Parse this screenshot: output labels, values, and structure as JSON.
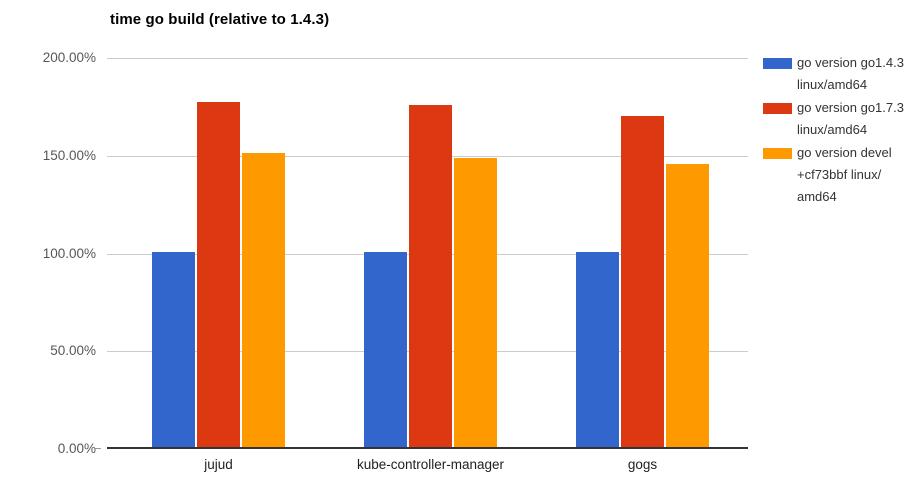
{
  "chart_data": {
    "type": "bar",
    "title": "time go build (relative to 1.4.3)",
    "categories": [
      "jujud",
      "kube-controller-manager",
      "gogs"
    ],
    "series": [
      {
        "name": "go version go1.4.3 linux/amd64",
        "color": "#3366cc",
        "values": [
          100,
          100,
          100
        ]
      },
      {
        "name": "go version go1.7.3 linux/amd64",
        "color": "#dc3912",
        "values": [
          176.5,
          174.8,
          169.2
        ]
      },
      {
        "name": "go version devel +cf73bbf linux/amd64",
        "color": "#ff9900",
        "values": [
          150.3,
          147.9,
          144.7
        ]
      }
    ],
    "ylim": [
      0,
      200
    ],
    "yticks": [
      {
        "value": 0,
        "label": "0.00%"
      },
      {
        "value": 50,
        "label": "50.00%"
      },
      {
        "value": 100,
        "label": "100.00%"
      },
      {
        "value": 150,
        "label": "150.00%"
      },
      {
        "value": 200,
        "label": "200.00%"
      }
    ],
    "grid": true,
    "legend_position": "right",
    "legend": [
      {
        "color": "#3366cc",
        "lines": [
          "go version go1.4.3",
          "linux/amd64"
        ]
      },
      {
        "color": "#dc3912",
        "lines": [
          "go version go1.7.3",
          "linux/amd64"
        ]
      },
      {
        "color": "#ff9900",
        "lines": [
          "go version devel",
          "+cf73bbf linux/",
          "amd64"
        ]
      }
    ],
    "colors": {
      "grid": "#cccccc",
      "baseline": "#333333",
      "ytick_text": "#55575a",
      "xtick_text": "#1f1f1f",
      "legend_text": "#333333",
      "title_text": "#000000",
      "background": "#ffffff"
    }
  }
}
